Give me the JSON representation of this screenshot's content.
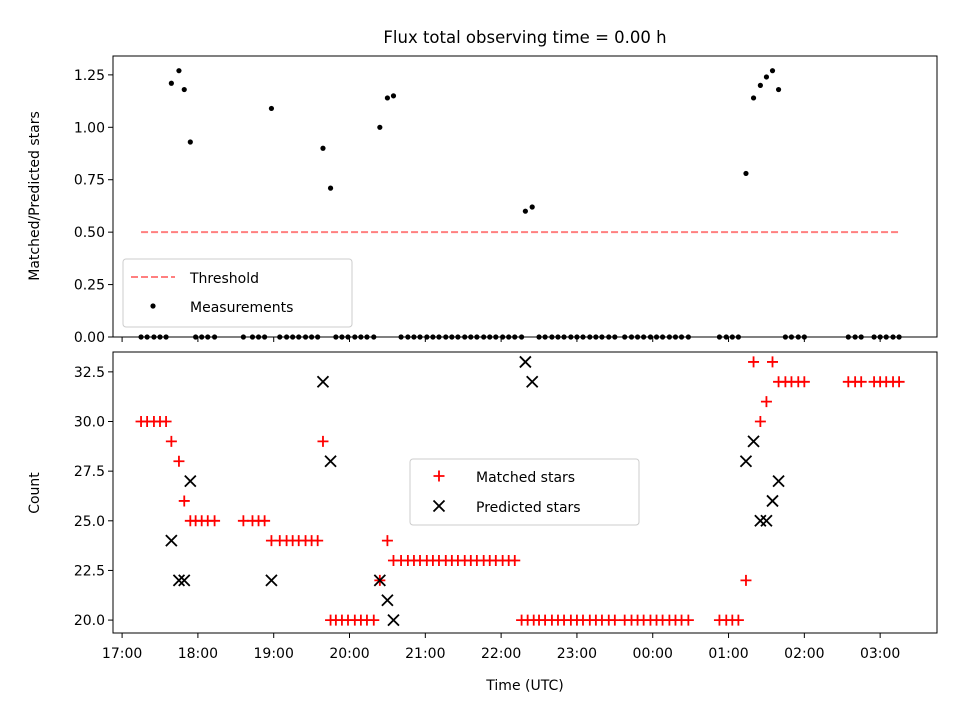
{
  "chart_data": [
    {
      "type": "scatter",
      "title": "Flux total observing time = 0.00 h",
      "ylabel": "Matched/Predicted stars",
      "xlabel": "",
      "x_unit": "hours (UTC, continuing past midnight)",
      "xlim": [
        16.88,
        27.75
      ],
      "ylim": [
        0.0,
        1.34
      ],
      "yticks": [
        {
          "v": 0.0,
          "label": "0.00"
        },
        {
          "v": 0.25,
          "label": "0.25"
        },
        {
          "v": 0.5,
          "label": "0.50"
        },
        {
          "v": 0.75,
          "label": "0.75"
        },
        {
          "v": 1.0,
          "label": "1.00"
        },
        {
          "v": 1.25,
          "label": "1.25"
        }
      ],
      "legend": {
        "placement": "lower-left",
        "entries": [
          "Threshold",
          "Measurements"
        ]
      },
      "threshold": {
        "name": "Threshold",
        "value": 0.5,
        "x": [
          17.25,
          27.25
        ],
        "color": "#ff7f7f"
      },
      "measurements": {
        "name": "Measurements",
        "color": "#000000",
        "points": [
          [
            17.65,
            1.21
          ],
          [
            17.75,
            1.27
          ],
          [
            17.82,
            1.18
          ],
          [
            17.9,
            0.93
          ],
          [
            18.97,
            1.09
          ],
          [
            19.65,
            0.9
          ],
          [
            19.75,
            0.71
          ],
          [
            20.4,
            1.0
          ],
          [
            20.5,
            1.14
          ],
          [
            20.58,
            1.15
          ],
          [
            22.32,
            0.6
          ],
          [
            22.41,
            0.62
          ],
          [
            25.23,
            0.78
          ],
          [
            25.33,
            1.14
          ],
          [
            25.42,
            1.2
          ],
          [
            25.5,
            1.24
          ],
          [
            25.58,
            1.27
          ],
          [
            25.66,
            1.18
          ]
        ],
        "zeros": [
          17.25,
          17.33,
          17.42,
          17.5,
          17.58,
          17.97,
          18.05,
          18.13,
          18.22,
          18.6,
          18.72,
          18.8,
          18.88,
          19.08,
          19.17,
          19.25,
          19.33,
          19.42,
          19.5,
          19.58,
          19.82,
          19.9,
          19.98,
          20.07,
          20.15,
          20.23,
          20.32,
          20.68,
          20.77,
          20.85,
          20.93,
          21.02,
          21.1,
          21.18,
          21.27,
          21.35,
          21.43,
          21.52,
          21.6,
          21.68,
          21.77,
          21.85,
          21.93,
          22.02,
          22.1,
          22.18,
          22.27,
          22.5,
          22.58,
          22.67,
          22.75,
          22.83,
          22.92,
          23.0,
          23.08,
          23.17,
          23.25,
          23.33,
          23.42,
          23.5,
          23.63,
          23.72,
          23.8,
          23.88,
          23.97,
          24.05,
          24.13,
          24.22,
          24.3,
          24.38,
          24.47,
          24.88,
          24.97,
          25.05,
          25.13,
          25.75,
          25.83,
          25.92,
          26.0,
          26.58,
          26.67,
          26.75,
          26.92,
          27.0,
          27.08,
          27.17,
          27.25
        ]
      }
    },
    {
      "type": "scatter",
      "title": "",
      "xlabel": "Time (UTC)",
      "ylabel": "Count",
      "xlim": [
        16.88,
        27.75
      ],
      "ylim": [
        19.35,
        33.5
      ],
      "yticks": [
        {
          "v": 20.0,
          "label": "20.0"
        },
        {
          "v": 22.5,
          "label": "22.5"
        },
        {
          "v": 25.0,
          "label": "25.0"
        },
        {
          "v": 27.5,
          "label": "27.5"
        },
        {
          "v": 30.0,
          "label": "30.0"
        },
        {
          "v": 32.5,
          "label": "32.5"
        }
      ],
      "xticks": [
        {
          "v": 17,
          "label": "17:00"
        },
        {
          "v": 18,
          "label": "18:00"
        },
        {
          "v": 19,
          "label": "19:00"
        },
        {
          "v": 20,
          "label": "20:00"
        },
        {
          "v": 21,
          "label": "21:00"
        },
        {
          "v": 22,
          "label": "22:00"
        },
        {
          "v": 23,
          "label": "23:00"
        },
        {
          "v": 24,
          "label": "00:00"
        },
        {
          "v": 25,
          "label": "01:00"
        },
        {
          "v": 26,
          "label": "02:00"
        },
        {
          "v": 27,
          "label": "03:00"
        }
      ],
      "legend": {
        "placement": "center",
        "entries": [
          "Matched stars",
          "Predicted stars"
        ]
      },
      "series": [
        {
          "name": "Matched stars",
          "marker": "plus",
          "color": "#ff0000",
          "points": [
            [
              17.25,
              30
            ],
            [
              17.33,
              30
            ],
            [
              17.42,
              30
            ],
            [
              17.5,
              30
            ],
            [
              17.58,
              30
            ],
            [
              17.65,
              29
            ],
            [
              17.75,
              28
            ],
            [
              17.82,
              26
            ],
            [
              17.9,
              25
            ],
            [
              17.97,
              25
            ],
            [
              18.05,
              25
            ],
            [
              18.13,
              25
            ],
            [
              18.22,
              25
            ],
            [
              18.6,
              25
            ],
            [
              18.72,
              25
            ],
            [
              18.8,
              25
            ],
            [
              18.88,
              25
            ],
            [
              18.97,
              24
            ],
            [
              19.08,
              24
            ],
            [
              19.17,
              24
            ],
            [
              19.25,
              24
            ],
            [
              19.33,
              24
            ],
            [
              19.42,
              24
            ],
            [
              19.5,
              24
            ],
            [
              19.58,
              24
            ],
            [
              19.65,
              29
            ],
            [
              19.75,
              20
            ],
            [
              19.82,
              20
            ],
            [
              19.9,
              20
            ],
            [
              19.98,
              20
            ],
            [
              20.07,
              20
            ],
            [
              20.15,
              20
            ],
            [
              20.23,
              20
            ],
            [
              20.32,
              20
            ],
            [
              20.4,
              22
            ],
            [
              20.5,
              24
            ],
            [
              20.58,
              23
            ],
            [
              20.68,
              23
            ],
            [
              20.77,
              23
            ],
            [
              20.85,
              23
            ],
            [
              20.93,
              23
            ],
            [
              21.02,
              23
            ],
            [
              21.1,
              23
            ],
            [
              21.18,
              23
            ],
            [
              21.27,
              23
            ],
            [
              21.35,
              23
            ],
            [
              21.43,
              23
            ],
            [
              21.52,
              23
            ],
            [
              21.6,
              23
            ],
            [
              21.68,
              23
            ],
            [
              21.77,
              23
            ],
            [
              21.85,
              23
            ],
            [
              21.93,
              23
            ],
            [
              22.02,
              23
            ],
            [
              22.1,
              23
            ],
            [
              22.18,
              23
            ],
            [
              22.27,
              20
            ],
            [
              22.35,
              20
            ],
            [
              22.43,
              20
            ],
            [
              22.5,
              20
            ],
            [
              22.58,
              20
            ],
            [
              22.67,
              20
            ],
            [
              22.75,
              20
            ],
            [
              22.83,
              20
            ],
            [
              22.92,
              20
            ],
            [
              23.0,
              20
            ],
            [
              23.08,
              20
            ],
            [
              23.17,
              20
            ],
            [
              23.25,
              20
            ],
            [
              23.33,
              20
            ],
            [
              23.42,
              20
            ],
            [
              23.5,
              20
            ],
            [
              23.63,
              20
            ],
            [
              23.72,
              20
            ],
            [
              23.8,
              20
            ],
            [
              23.88,
              20
            ],
            [
              23.97,
              20
            ],
            [
              24.05,
              20
            ],
            [
              24.13,
              20
            ],
            [
              24.22,
              20
            ],
            [
              24.3,
              20
            ],
            [
              24.38,
              20
            ],
            [
              24.47,
              20
            ],
            [
              24.88,
              20
            ],
            [
              24.97,
              20
            ],
            [
              25.05,
              20
            ],
            [
              25.13,
              20
            ],
            [
              25.23,
              22
            ],
            [
              25.33,
              33
            ],
            [
              25.42,
              30
            ],
            [
              25.5,
              31
            ],
            [
              25.58,
              33
            ],
            [
              25.66,
              32
            ],
            [
              25.75,
              32
            ],
            [
              25.83,
              32
            ],
            [
              25.92,
              32
            ],
            [
              26.0,
              32
            ],
            [
              26.58,
              32
            ],
            [
              26.67,
              32
            ],
            [
              26.75,
              32
            ],
            [
              26.92,
              32
            ],
            [
              27.0,
              32
            ],
            [
              27.08,
              32
            ],
            [
              27.17,
              32
            ],
            [
              27.25,
              32
            ]
          ]
        },
        {
          "name": "Predicted stars",
          "marker": "x",
          "color": "#000000",
          "points": [
            [
              17.65,
              24
            ],
            [
              17.75,
              22
            ],
            [
              17.82,
              22
            ],
            [
              17.9,
              27
            ],
            [
              18.97,
              22
            ],
            [
              19.65,
              32
            ],
            [
              19.75,
              28
            ],
            [
              20.4,
              22
            ],
            [
              20.5,
              21
            ],
            [
              20.58,
              20
            ],
            [
              22.32,
              33
            ],
            [
              22.41,
              32
            ],
            [
              25.23,
              28
            ],
            [
              25.33,
              29
            ],
            [
              25.42,
              25
            ],
            [
              25.5,
              25
            ],
            [
              25.58,
              26
            ],
            [
              25.66,
              27
            ]
          ]
        }
      ]
    }
  ]
}
